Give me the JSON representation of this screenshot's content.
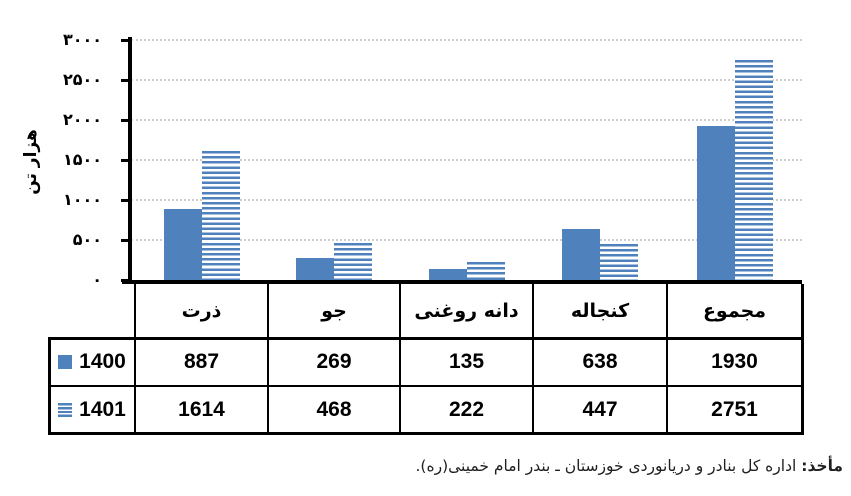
{
  "chart_data": {
    "type": "bar",
    "title": "",
    "ylabel": "هزار تن",
    "categories": [
      "ذرت",
      "جو",
      "دانه روغنی",
      "کنجاله",
      "مجموع"
    ],
    "series": [
      {
        "name": "1400",
        "pattern": "solid",
        "values": [
          887,
          269,
          135,
          638,
          1930
        ]
      },
      {
        "name": "1401",
        "pattern": "striped",
        "values": [
          1614,
          468,
          222,
          447,
          2751
        ]
      }
    ],
    "ylim": [
      0,
      3000
    ],
    "ytick_interval": 500,
    "ytick_labels": [
      "۰",
      "۵۰۰",
      "۱۰۰۰",
      "۱۵۰۰",
      "۲۰۰۰",
      "۲۵۰۰",
      "۳۰۰۰"
    ],
    "grid": "horizontal dotted",
    "legend_position": "left column of data table",
    "bar_color": "#4F81BD"
  },
  "source_note": {
    "label": "مأخذ:",
    "text": "اداره کل بنادر و دریانوردی خوزستان ـ بندر امام خمینی(ره)."
  },
  "colors": {
    "bar": "#4F81BD",
    "grid": "#cfcfcf",
    "axis": "#000000",
    "text": "#000000"
  }
}
